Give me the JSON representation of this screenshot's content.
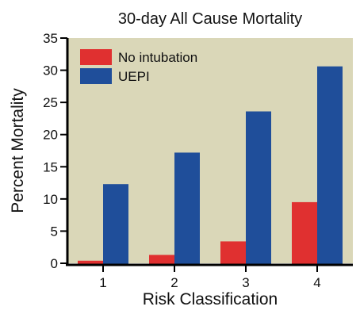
{
  "chart_data": {
    "type": "bar",
    "title": "30-day All Cause Mortality",
    "xlabel": "Risk Classification",
    "ylabel": "Percent Mortality",
    "categories": [
      "1",
      "2",
      "3",
      "4"
    ],
    "series": [
      {
        "name": "No intubation",
        "values": [
          0.4,
          1.3,
          3.4,
          9.5
        ],
        "color": "#e03030"
      },
      {
        "name": "UEPI",
        "values": [
          12.3,
          17.2,
          23.6,
          30.6
        ],
        "color": "#1f4e9a"
      }
    ],
    "ylim": [
      0,
      35
    ],
    "yticks": [
      0,
      5,
      10,
      15,
      20,
      25,
      30,
      35
    ],
    "legend_position": "top-left",
    "plot_background": "#dad7b8",
    "grid": false
  }
}
